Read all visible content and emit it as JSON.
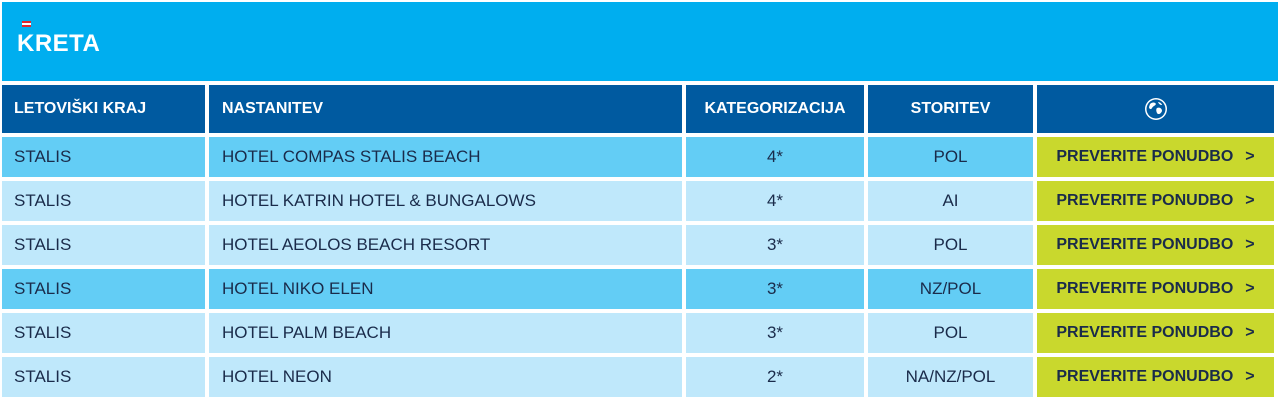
{
  "region": {
    "title": "KRETA",
    "flag_colors": [
      "#e0262c",
      "#ffffff",
      "#e0262c"
    ]
  },
  "table": {
    "headers": [
      "LETOVIŠKI KRAJ",
      "NASTANITEV",
      "KATEGORIZACIJA",
      "STORITEV"
    ],
    "globe_icon": "globe-icon",
    "cta_label": "PREVERITE PONUDBO",
    "cta_chevron": ">",
    "rows": [
      {
        "place": "STALIS",
        "hotel": "HOTEL COMPAS STALIS BEACH",
        "category": "4*",
        "service": "POL"
      },
      {
        "place": "STALIS",
        "hotel": "HOTEL KATRIN HOTEL & BUNGALOWS",
        "category": "4*",
        "service": "AI"
      },
      {
        "place": "STALIS",
        "hotel": "HOTEL AEOLOS BEACH RESORT",
        "category": "3*",
        "service": "POL"
      },
      {
        "place": "STALIS",
        "hotel": "HOTEL NIKO ELEN",
        "category": "3*",
        "service": "NZ/POL"
      },
      {
        "place": "STALIS",
        "hotel": "HOTEL PALM BEACH",
        "category": "3*",
        "service": "POL"
      },
      {
        "place": "STALIS",
        "hotel": "HOTEL NEON",
        "category": "2*",
        "service": "NA/NZ/POL"
      }
    ]
  },
  "colors": {
    "title_bg": "#00aeef",
    "header_bg": "#005aa0",
    "row_dark": "#63cdf5",
    "row_light": "#bfe8fb",
    "cta_bg": "#c9d82d"
  }
}
